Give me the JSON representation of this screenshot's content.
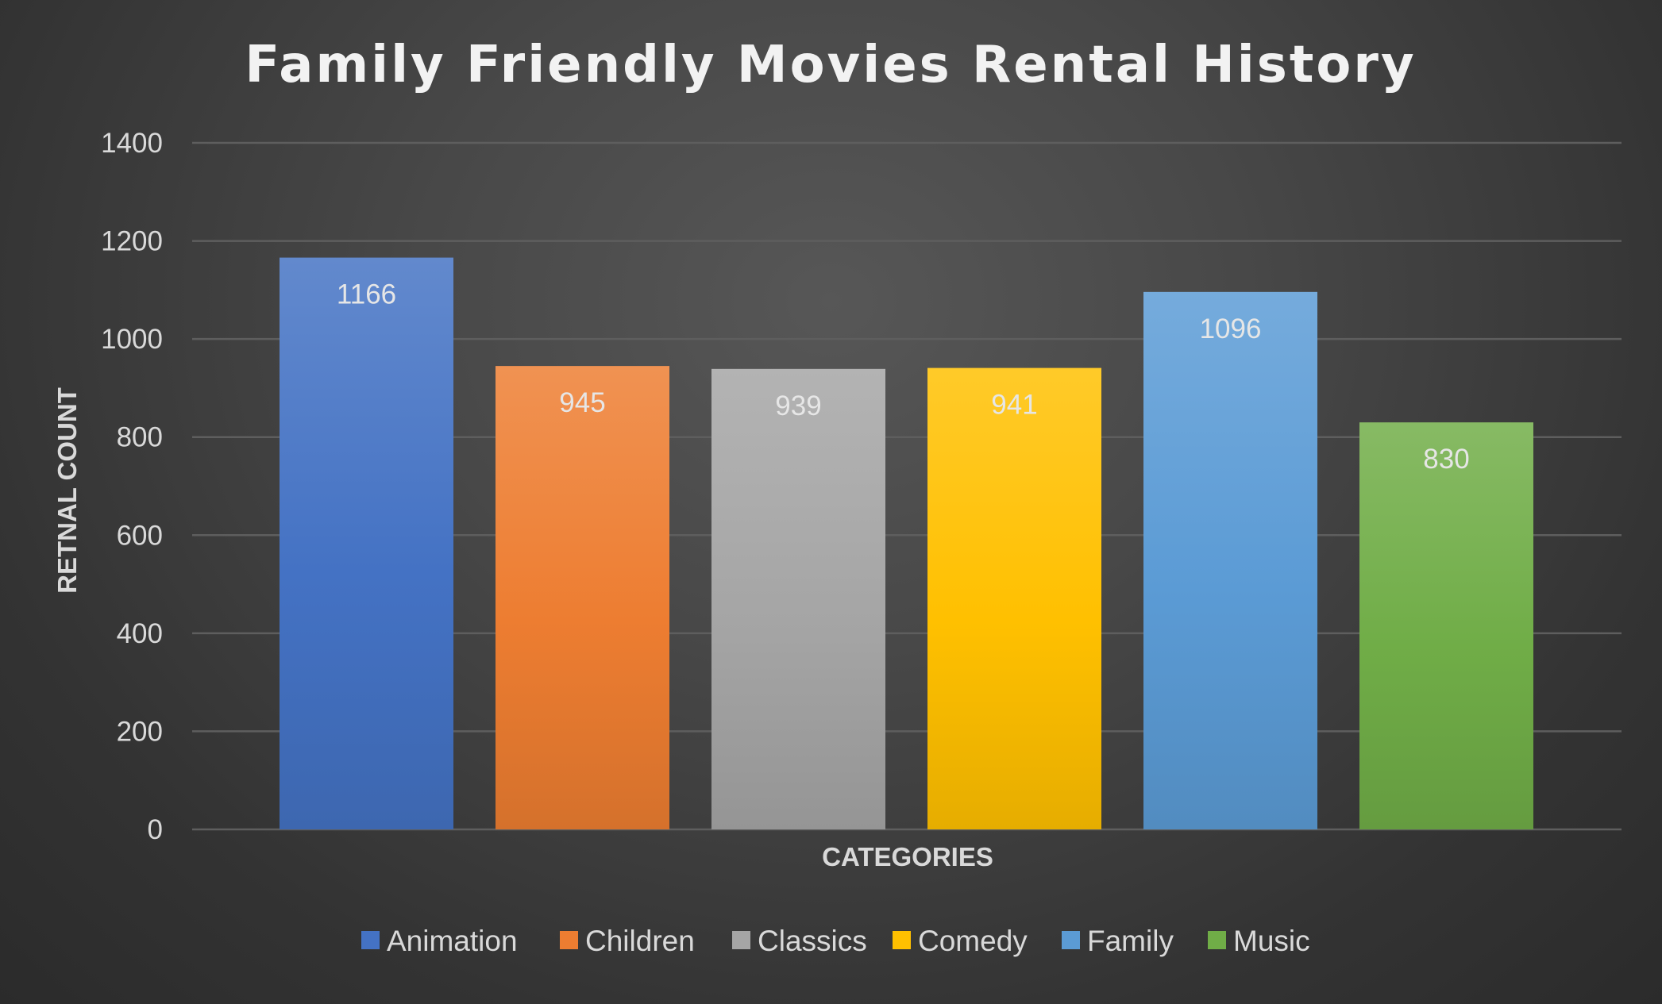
{
  "chart_data": {
    "type": "bar",
    "title": "Family Friendly Movies Rental History",
    "xlabel": "CATEGORIES",
    "ylabel": "RETNAL COUNT",
    "categories": [
      "Animation",
      "Children",
      "Classics",
      "Comedy",
      "Family",
      "Music"
    ],
    "values": [
      1166,
      945,
      939,
      941,
      1096,
      830
    ],
    "colors": [
      "#4472c4",
      "#ed7d31",
      "#a5a5a5",
      "#ffc000",
      "#5b9bd5",
      "#70ad47"
    ],
    "ylim": [
      0,
      1400
    ],
    "yticks": [
      0,
      200,
      400,
      600,
      800,
      1000,
      1200,
      1400
    ],
    "grid": true,
    "legend_position": "bottom",
    "data_labels": true
  }
}
